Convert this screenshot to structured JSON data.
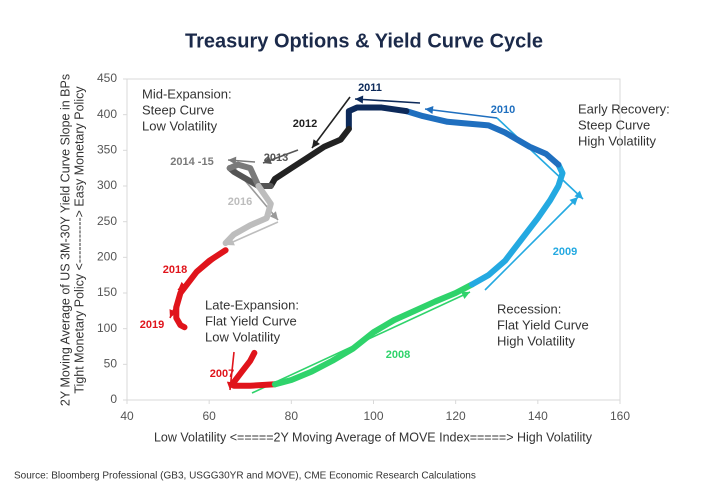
{
  "chart_data": {
    "type": "line",
    "title": "Treasury Options & Yield Curve Cycle",
    "x_label": "Low Volatility <=====2Y Moving Average of MOVE Index=====> High Volatility",
    "y_label": [
      "2Y Moving Average of US 3M-30Y Yield Curve Slope in BPs",
      "Tight Monetary Policy <-----------> Easy Monetary Policy"
    ],
    "source": "Source: Bloomberg Professional (GB3, USGG30YR and MOVE), CME Economic Research Calculations",
    "xlim": [
      40,
      160
    ],
    "xticks": [
      40,
      60,
      80,
      100,
      120,
      140,
      160
    ],
    "ylim": [
      0,
      450
    ],
    "yticks": [
      0,
      50,
      100,
      150,
      200,
      250,
      300,
      350,
      400,
      450
    ],
    "grid": false,
    "annotations": [
      [
        "Mid-Expansion:",
        "Steep Curve",
        "Low Volatility"
      ],
      [
        "Early Recovery:",
        "Steep Curve",
        "High Volatility"
      ],
      [
        "Late-Expansion:",
        "Flat Yield Curve",
        "Low Volatility"
      ],
      [
        "Recession:",
        "Flat Yield Curve",
        "High Volatility"
      ]
    ],
    "series": [
      {
        "name": "2007",
        "color": "#e0141b",
        "x": [
          71,
          70,
          68,
          66,
          66,
          70,
          76
        ],
        "values": [
          66,
          55,
          40,
          25,
          20,
          20,
          22
        ]
      },
      {
        "name": "2008",
        "color": "#2fd36b",
        "x": [
          76,
          80,
          85,
          90,
          95,
          100,
          105,
          110,
          115,
          120,
          124
        ],
        "values": [
          22,
          28,
          40,
          55,
          72,
          95,
          112,
          125,
          138,
          150,
          162
        ]
      },
      {
        "name": "2009",
        "color": "#24a9e1",
        "x": [
          124,
          128,
          132,
          136,
          140,
          143,
          145,
          146,
          145
        ],
        "values": [
          162,
          175,
          195,
          225,
          255,
          280,
          300,
          318,
          330
        ]
      },
      {
        "name": "2010",
        "color": "#1f6fbf",
        "x": [
          145,
          142,
          138,
          132,
          128,
          122,
          118,
          112,
          108
        ],
        "values": [
          330,
          345,
          355,
          375,
          385,
          388,
          390,
          398,
          405
        ]
      },
      {
        "name": "2011",
        "color": "#0d2a5a",
        "x": [
          108,
          102,
          96,
          94,
          94
        ],
        "values": [
          405,
          410,
          410,
          405,
          380
        ]
      },
      {
        "name": "2012",
        "color": "#222222",
        "x": [
          94,
          92,
          88,
          84,
          80,
          76,
          75
        ],
        "values": [
          380,
          365,
          355,
          340,
          325,
          310,
          300
        ]
      },
      {
        "name": "2013",
        "color": "#555555",
        "x": [
          75,
          72,
          69,
          66,
          65
        ],
        "values": [
          300,
          300,
          310,
          320,
          325
        ]
      },
      {
        "name": "2014 -15",
        "color": "#7a7a7a",
        "x": [
          65,
          67,
          70,
          72
        ],
        "values": [
          325,
          330,
          325,
          300
        ]
      },
      {
        "name": "2016",
        "color": "#bdbdbd",
        "x": [
          72,
          75,
          74,
          70,
          66,
          64
        ],
        "values": [
          300,
          275,
          255,
          245,
          232,
          220
        ]
      },
      {
        "name": "2018",
        "color": "#e0141b",
        "x": [
          64,
          60,
          57,
          55,
          53,
          52
        ],
        "values": [
          210,
          195,
          180,
          165,
          150,
          130
        ]
      },
      {
        "name": "2019",
        "color": "#e0141b",
        "x": [
          52,
          52,
          53,
          54
        ],
        "values": [
          130,
          115,
          105,
          102
        ]
      }
    ]
  }
}
